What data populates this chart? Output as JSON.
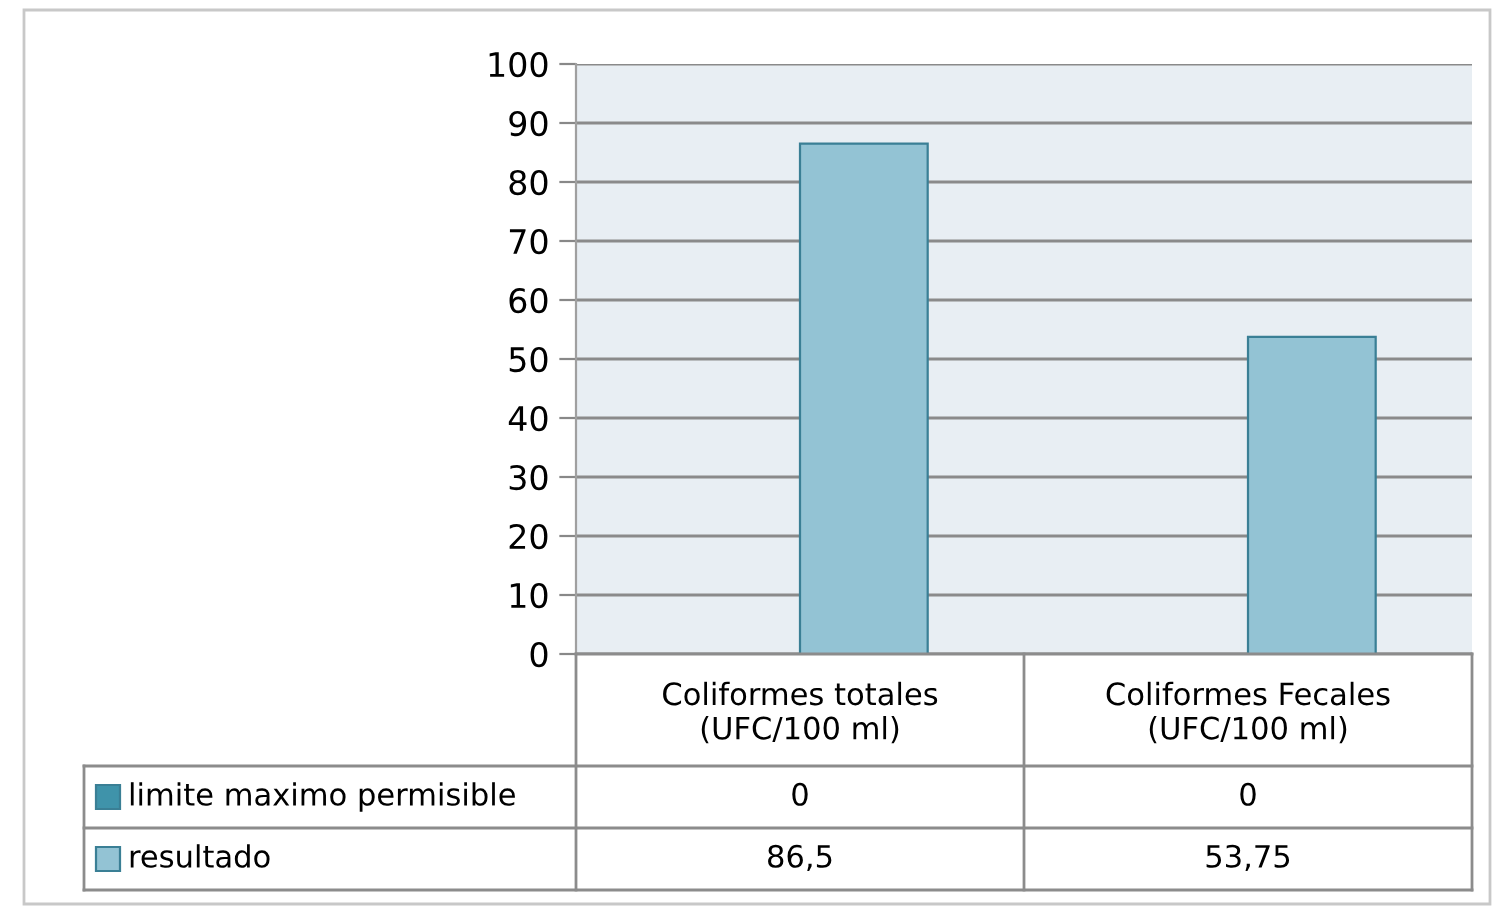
{
  "chart_data": {
    "type": "bar",
    "categories": [
      "Coliformes totales\n(UFC/100 ml)",
      "Coliformes Fecales\n(UFC/100 ml)"
    ],
    "series": [
      {
        "name": "limite maximo permisible",
        "color": "#3f93aa",
        "values": [
          0,
          0
        ],
        "value_labels": [
          "0",
          "0"
        ]
      },
      {
        "name": "resultado",
        "color": "#93c3d4",
        "values": [
          86.5,
          53.75
        ],
        "value_labels": [
          "86,5",
          "53,75"
        ]
      }
    ],
    "ylim": [
      0,
      100
    ],
    "yticks": [
      0,
      10,
      20,
      30,
      40,
      50,
      60,
      70,
      80,
      90,
      100
    ],
    "grid": "y",
    "legend": "bottom left"
  }
}
